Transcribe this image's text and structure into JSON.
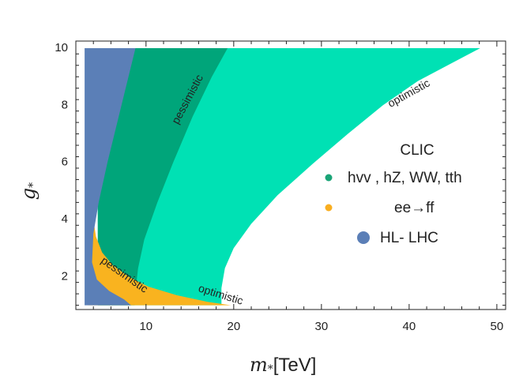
{
  "chart_data": {
    "type": "area",
    "xlabel_symbol": "m",
    "xlabel_sub": "*",
    "xlabel_unit": "[TeV]",
    "ylabel_symbol": "g",
    "ylabel_sub": "*",
    "xlim": [
      2,
      51
    ],
    "ylim": [
      0.85,
      10.25
    ],
    "xticks": [
      10,
      20,
      30,
      40,
      50
    ],
    "yticks": [
      2,
      4,
      6,
      8,
      10
    ],
    "legend": {
      "title": "CLIC",
      "entries": [
        {
          "label": "hvv , hZ, WW, tth",
          "color": "#1aa477",
          "marker": "small"
        },
        {
          "label": "ee→ff",
          "color": "#f9ae20",
          "marker": "small"
        },
        {
          "label": "HL- LHC",
          "color": "#5b7fb7",
          "marker": "large"
        }
      ]
    },
    "regions": [
      {
        "name": "clic-optimistic",
        "color": "#00e1b4",
        "polygon": [
          [
            4.5,
            1.0
          ],
          [
            4.5,
            10.0
          ],
          [
            48.1,
            10.0
          ],
          [
            45,
            9.5
          ],
          [
            41,
            8.85
          ],
          [
            37,
            8.0
          ],
          [
            33,
            7.0
          ],
          [
            29,
            5.95
          ],
          [
            25,
            4.85
          ],
          [
            22,
            3.85
          ],
          [
            20,
            3.0
          ],
          [
            19,
            2.3
          ],
          [
            18.6,
            1.6
          ],
          [
            18.6,
            1.0
          ]
        ]
      },
      {
        "name": "clic-pessimistic",
        "color": "#00a57a",
        "polygon": [
          [
            4.5,
            1.0
          ],
          [
            4.5,
            10.0
          ],
          [
            19.3,
            10.0
          ],
          [
            17.5,
            9.0
          ],
          [
            15.3,
            7.6
          ],
          [
            13.1,
            6.0
          ],
          [
            11.3,
            4.6
          ],
          [
            9.8,
            3.3
          ],
          [
            9.1,
            2.3
          ],
          [
            8.8,
            1.5
          ],
          [
            8.7,
            1.0
          ]
        ]
      },
      {
        "name": "ee-ff",
        "color": "#f9b31f",
        "polygon": [
          [
            3.4,
            1.0
          ],
          [
            3.4,
            4.55
          ],
          [
            3.9,
            4.55
          ],
          [
            4.0,
            4.0
          ],
          [
            4.3,
            3.4
          ],
          [
            5.0,
            2.85
          ],
          [
            6.2,
            2.4
          ],
          [
            8.0,
            2.0
          ],
          [
            10.3,
            1.65
          ],
          [
            13.5,
            1.35
          ],
          [
            17,
            1.12
          ],
          [
            19.7,
            1.0
          ]
        ]
      },
      {
        "name": "hl-lhc",
        "color": "#5b7fb7",
        "polygon": [
          [
            3.0,
            1.0
          ],
          [
            3.0,
            10.0
          ],
          [
            8.8,
            10.0
          ],
          [
            8.0,
            9.0
          ],
          [
            6.8,
            7.5
          ],
          [
            5.6,
            6.0
          ],
          [
            4.6,
            4.6
          ],
          [
            4.0,
            3.5
          ],
          [
            3.85,
            2.5
          ],
          [
            4.4,
            1.9
          ],
          [
            5.8,
            1.5
          ],
          [
            7.5,
            1.2
          ],
          [
            8.3,
            1.0
          ]
        ]
      }
    ],
    "region_labels": [
      {
        "text": "pessimistic",
        "x": 14.8,
        "y": 8.2,
        "angle": -62
      },
      {
        "text": "optimistic",
        "x": 40.0,
        "y": 8.4,
        "angle": -29
      },
      {
        "text": "pessimistic",
        "x": 7.5,
        "y": 2.05,
        "angle": 35
      },
      {
        "text": "optimistic",
        "x": 18.5,
        "y": 1.35,
        "angle": 17
      }
    ]
  }
}
